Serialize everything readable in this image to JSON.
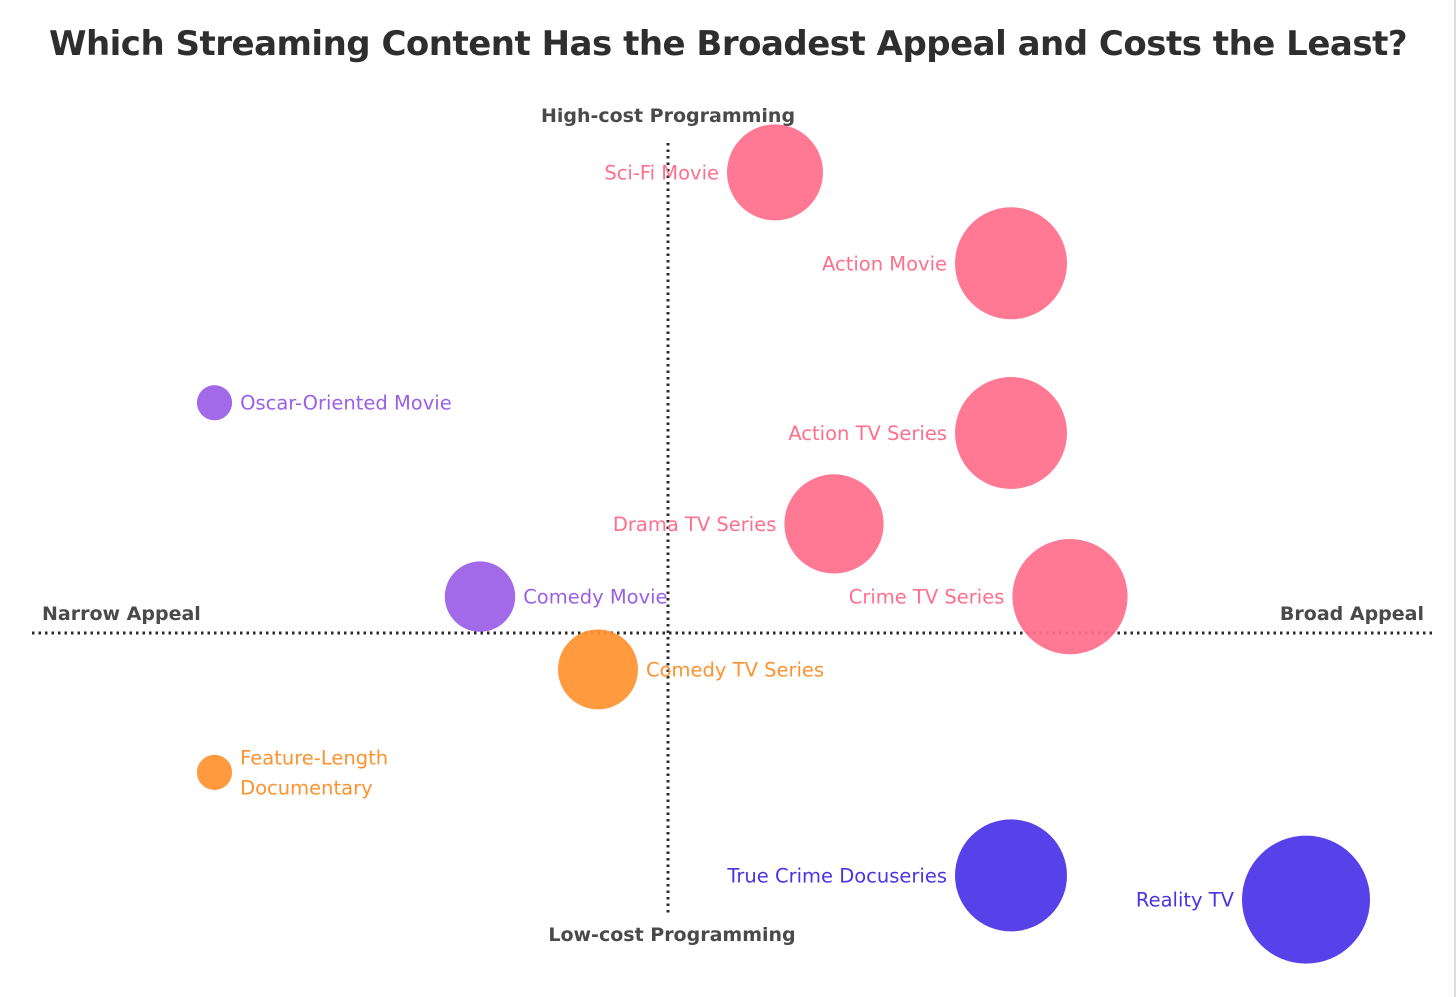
{
  "chart_data": {
    "type": "scatter",
    "title": "Which Streaming Content Has the Broadest Appeal and Costs the Least?",
    "xlabel_left": "Narrow Appeal",
    "xlabel_right": "Broad Appeal",
    "ylabel_top": "High-cost Programming",
    "ylabel_bottom": "Low-cost Programming",
    "xlim": [
      -10,
      10
    ],
    "ylim": [
      -10,
      10
    ],
    "grid": false,
    "colors": {
      "high_cost": "#ff6f8c",
      "medium": "#9b5fe6",
      "low_medium": "#ff9230",
      "low_cost": "#4a33e6",
      "axis_text": "#4a4a4a",
      "title_text": "#2e2e2e"
    },
    "points": [
      {
        "label": "Sci-Fi Movie",
        "x": 1.0,
        "y": 7.6,
        "size": 3.0,
        "group": "high_cost",
        "label_side": "left"
      },
      {
        "label": "Action Movie",
        "x": 5.0,
        "y": 6.1,
        "size": 3.5,
        "group": "high_cost",
        "label_side": "left"
      },
      {
        "label": "Action TV Series",
        "x": 5.0,
        "y": 3.3,
        "size": 3.5,
        "group": "high_cost",
        "label_side": "left"
      },
      {
        "label": "Drama TV Series",
        "x": 2.0,
        "y": 1.8,
        "size": 3.1,
        "group": "high_cost",
        "label_side": "left"
      },
      {
        "label": "Crime TV Series",
        "x": 6.0,
        "y": 0.6,
        "size": 3.6,
        "group": "high_cost",
        "label_side": "left"
      },
      {
        "label": "Oscar-Oriented Movie",
        "x": -8.5,
        "y": 3.8,
        "size": 1.1,
        "group": "medium",
        "label_side": "right"
      },
      {
        "label": "Comedy Movie",
        "x": -4.0,
        "y": 0.6,
        "size": 2.2,
        "group": "medium",
        "label_side": "right"
      },
      {
        "label": "Comedy TV Series",
        "x": -2.0,
        "y": -0.6,
        "size": 2.5,
        "group": "low_medium",
        "label_side": "right"
      },
      {
        "label": "Feature-Length\nDocumentary",
        "x": -8.5,
        "y": -2.3,
        "size": 1.1,
        "group": "low_medium",
        "label_side": "right"
      },
      {
        "label": "True Crime Docuseries",
        "x": 5.0,
        "y": -4.0,
        "size": 3.5,
        "group": "low_cost",
        "label_side": "left"
      },
      {
        "label": "Reality TV",
        "x": 10.0,
        "y": -4.4,
        "size": 4.0,
        "group": "low_cost",
        "label_side": "left"
      }
    ]
  }
}
